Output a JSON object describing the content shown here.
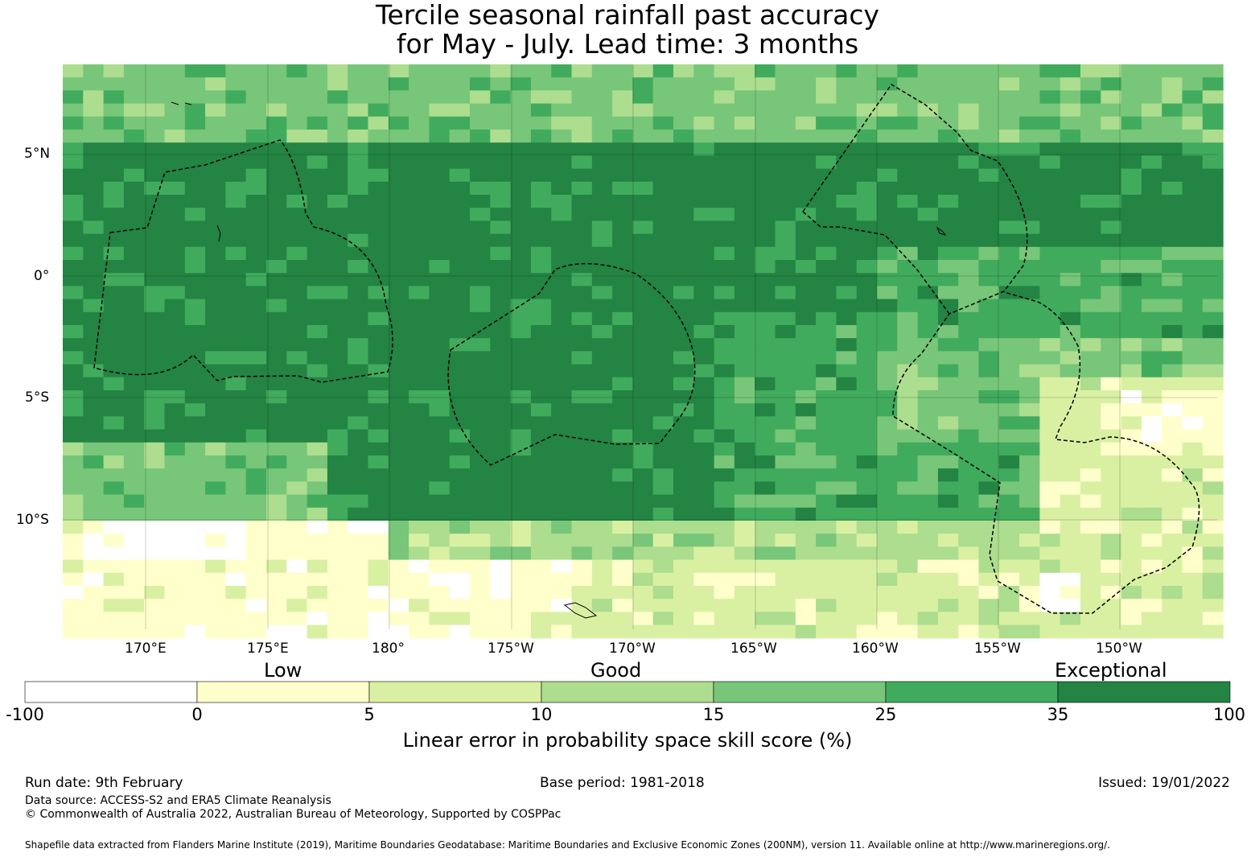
{
  "title_line1": "Tercile seasonal rainfall past accuracy",
  "title_line2": "for May - July. Lead time: 3 months",
  "lon_labels": [
    "170°E",
    "175°E",
    "180°",
    "175°W",
    "170°W",
    "165°W",
    "160°W",
    "155°W",
    "150°W"
  ],
  "lat_labels": [
    "5°N",
    "0°",
    "5°S",
    "10°S"
  ],
  "categories": {
    "low": "Low",
    "good": "Good",
    "exceptional": "Exceptional"
  },
  "colorbar_ticks": [
    "-100",
    "0",
    "5",
    "10",
    "15",
    "25",
    "35",
    "100"
  ],
  "colorbar_colors": [
    "#ffffff",
    "#ffffcc",
    "#d9f0a3",
    "#addd8e",
    "#78c679",
    "#41ab5d",
    "#238443"
  ],
  "colorbar_label": "Linear error in probability space skill score (%)",
  "run_date": "Run date: 9th February",
  "base_period": "Base period: 1981-2018",
  "issued": "Issued: 19/01/2022",
  "data_source": "Data source: ACCESS-S2 and ERA5 Climate Reanalysis",
  "copyright": "© Commonwealth of Australia 2022, Australian Bureau of Meteorology, Supported by COSPPac",
  "shapefile": "Shapefile data extracted from Flanders Marine Institute (2019), Maritime Boundaries Geodatabase: Maritime Boundaries and Exclusive Economic Zones (200NM), version 11. Available online at http://www.marineregions.org/."
}
